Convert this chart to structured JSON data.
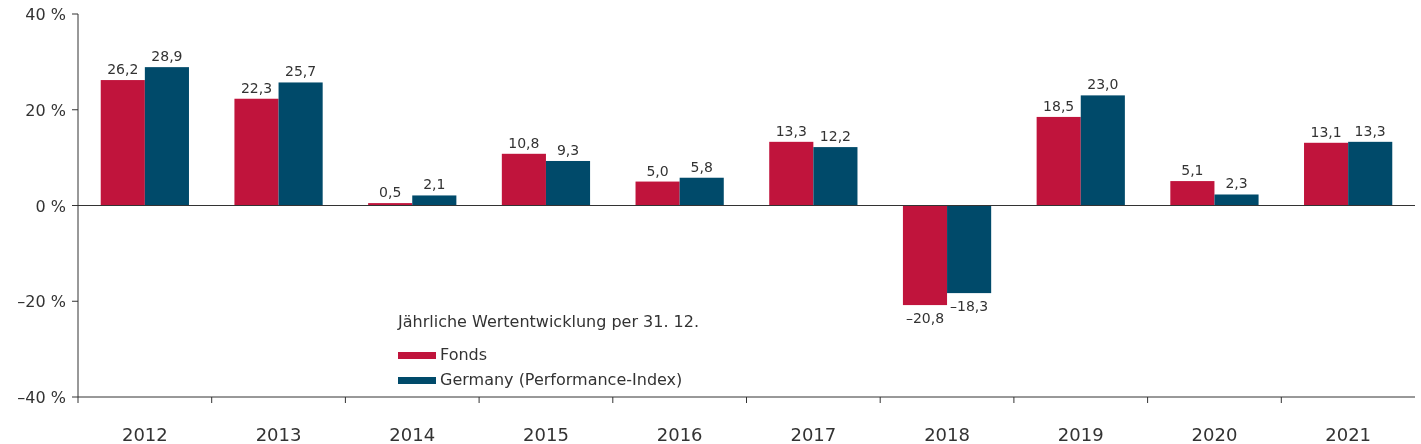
{
  "chart_data": {
    "type": "bar",
    "legend_title": "Jährliche Wertentwicklung per 31. 12.",
    "categories": [
      "2012",
      "2013",
      "2014",
      "2015",
      "2016",
      "2017",
      "2018",
      "2019",
      "2020",
      "2021"
    ],
    "series": [
      {
        "name": "Fonds",
        "color": "#c0143c",
        "values": [
          26.2,
          22.3,
          0.5,
          10.8,
          5.0,
          13.3,
          -20.8,
          18.5,
          5.1,
          13.1
        ],
        "value_labels": [
          "26,2",
          "22,3",
          "0,5",
          "10,8",
          "5,0",
          "13,3",
          "–20,8",
          "18,5",
          "5,1",
          "13,1"
        ]
      },
      {
        "name": "Germany (Performance-Index)",
        "color": "#004a6a",
        "values": [
          28.9,
          25.7,
          2.1,
          9.3,
          5.8,
          12.2,
          -18.3,
          23.0,
          2.3,
          13.3
        ],
        "value_labels": [
          "28,9",
          "25,7",
          "2,1",
          "9,3",
          "5,8",
          "12,2",
          "–18,3",
          "23,0",
          "2,3",
          "13,3"
        ]
      }
    ],
    "ylim": [
      -40,
      40
    ],
    "yticks": [
      {
        "value": -40,
        "label": "–40 %"
      },
      {
        "value": -20,
        "label": "–20 %"
      },
      {
        "value": 0,
        "label": "0 %"
      },
      {
        "value": 20,
        "label": "20 %"
      },
      {
        "value": 40,
        "label": "40 %"
      }
    ],
    "legend": "bottom left"
  }
}
